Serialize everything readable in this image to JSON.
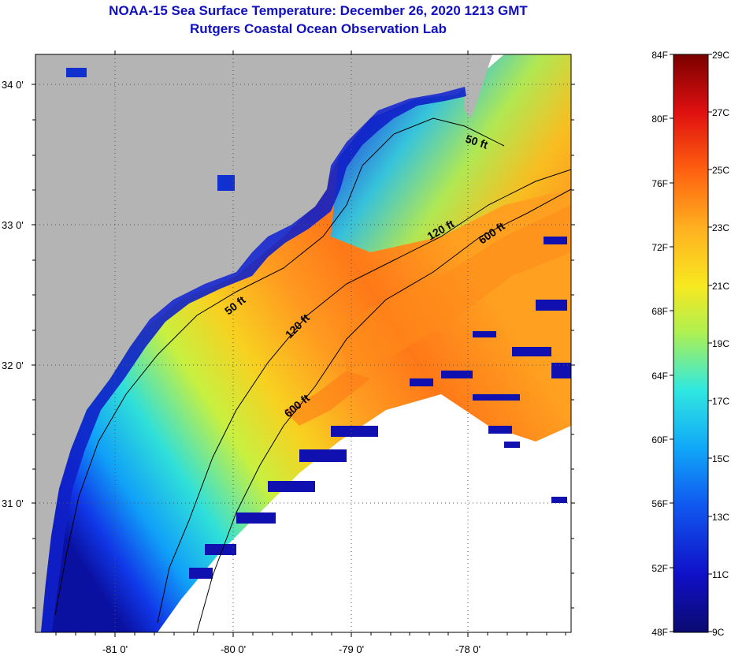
{
  "title_line1": "NOAA-15 Sea Surface Temperature:  December 26, 2020 1213 GMT",
  "title_line2": "Rutgers Coastal Ocean Observation Lab",
  "map": {
    "lat_labels": [
      "34 0'",
      "33 0'",
      "32 0'",
      "31 0'"
    ],
    "lon_labels": [
      "-81 0'",
      "-80 0'",
      "-79 0'",
      "-78 0'"
    ],
    "isobaths": [
      {
        "label": "50 ft"
      },
      {
        "label": "50 ft"
      },
      {
        "label": "120 ft"
      },
      {
        "label": "120 ft"
      },
      {
        "label": "600 ft"
      },
      {
        "label": "600 ft"
      }
    ]
  },
  "colorbar": {
    "f_labels": [
      "84F",
      "80F",
      "76F",
      "72F",
      "68F",
      "64F",
      "60F",
      "56F",
      "52F",
      "48F"
    ],
    "c_labels": [
      "29C",
      "27C",
      "25C",
      "23C",
      "21C",
      "19C",
      "17C",
      "15C",
      "13C",
      "11C",
      "9C"
    ],
    "colors": [
      "#7a0000",
      "#d01010",
      "#ff5010",
      "#ff9020",
      "#f8d020",
      "#c8f030",
      "#40e8d0",
      "#10a8f8",
      "#1050f0",
      "#1010b0",
      "#0a0a70"
    ]
  },
  "colors": {
    "land": "#b4b4b4",
    "no_data": "#ffffff",
    "title": "#1010c0"
  }
}
